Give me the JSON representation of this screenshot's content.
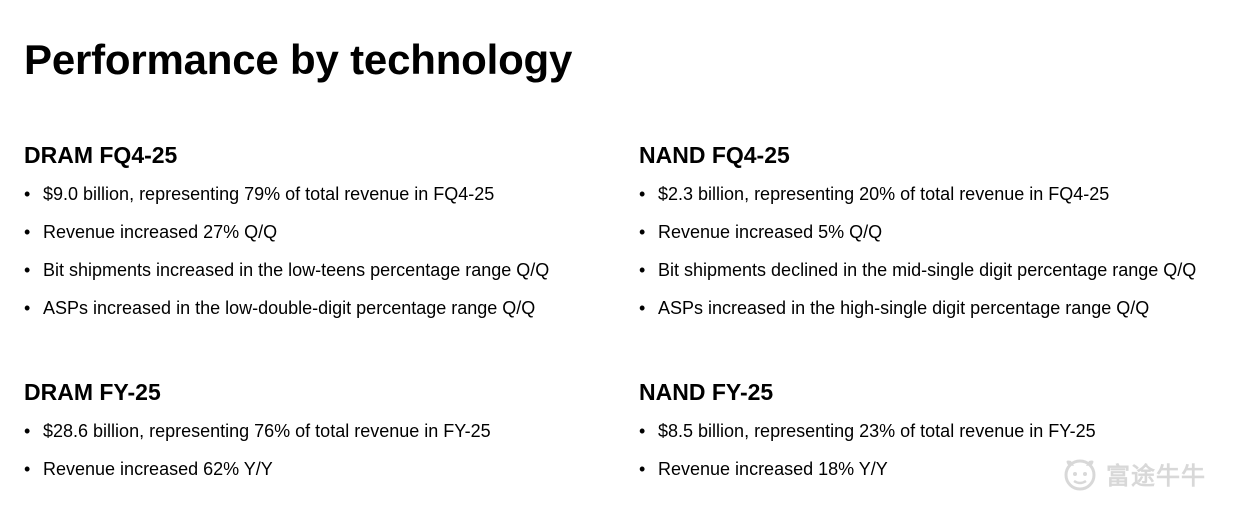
{
  "page": {
    "title": "Performance by technology"
  },
  "sections": [
    {
      "heading": "DRAM FQ4-25",
      "bullets": [
        "$9.0 billion, representing 79% of total revenue in FQ4-25",
        "Revenue increased 27% Q/Q",
        "Bit shipments increased in the low-teens percentage range Q/Q",
        "ASPs increased in the low-double-digit percentage range Q/Q"
      ]
    },
    {
      "heading": "NAND FQ4-25",
      "bullets": [
        "$2.3 billion, representing 20% of total revenue in FQ4-25",
        "Revenue increased 5% Q/Q",
        "Bit shipments declined in the mid-single digit percentage range Q/Q",
        "ASPs increased in the high-single digit percentage range Q/Q"
      ]
    },
    {
      "heading": "DRAM FY-25",
      "bullets": [
        "$28.6 billion, representing 76% of total revenue in FY-25",
        "Revenue increased 62% Y/Y"
      ]
    },
    {
      "heading": "NAND FY-25",
      "bullets": [
        "$8.5 billion, representing 23% of total revenue in FY-25",
        "Revenue increased 18% Y/Y"
      ]
    }
  ],
  "bullet_glyph": "•",
  "watermark": {
    "text": "富途牛牛",
    "icon": "futu-bull-logo-icon",
    "color": "#777777"
  }
}
